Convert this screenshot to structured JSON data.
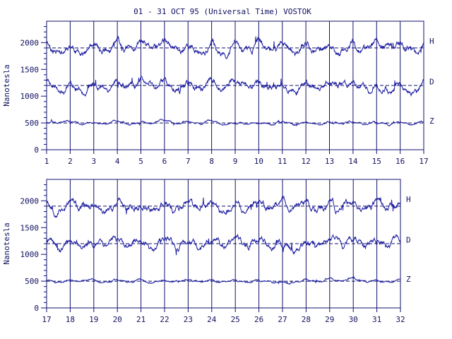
{
  "title": "01 - 31 OCT 95 (Universal Time) VOSTOK",
  "colors": {
    "ink": "#10106e",
    "trace": "#1a1aa0",
    "text": "#101060"
  },
  "chart_data": [
    {
      "type": "line",
      "title": "01 - 31 OCT 95 (Universal Time) VOSTOK",
      "ylabel": "Nanotesla",
      "xlim": [
        1,
        17
      ],
      "ylim": [
        0,
        2400
      ],
      "x_ticks": [
        "1",
        "2",
        "3",
        "4",
        "5",
        "6",
        "7",
        "8",
        "9",
        "10",
        "11",
        "12",
        "13",
        "14",
        "15",
        "16",
        "17"
      ],
      "y_ticks": [
        "0",
        "500",
        "1000",
        "1500",
        "2000"
      ],
      "grid": "vertical at each day",
      "series": [
        {
          "name": "H",
          "baseline": 1900,
          "amplitude": 120,
          "seed": 11
        },
        {
          "name": "D",
          "baseline": 1200,
          "amplitude": 110,
          "seed": 23
        },
        {
          "name": "Z",
          "baseline": 500,
          "amplitude": 35,
          "seed": 37
        }
      ]
    },
    {
      "type": "line",
      "ylabel": "Nanotesla",
      "xlim": [
        17,
        32
      ],
      "ylim": [
        0,
        2400
      ],
      "x_ticks": [
        "17",
        "18",
        "19",
        "20",
        "21",
        "22",
        "23",
        "24",
        "25",
        "26",
        "27",
        "28",
        "29",
        "30",
        "31",
        "32"
      ],
      "y_ticks": [
        "0",
        "500",
        "1000",
        "1500",
        "2000"
      ],
      "grid": "vertical at each day",
      "series": [
        {
          "name": "H",
          "baseline": 1900,
          "amplitude": 120,
          "seed": 53
        },
        {
          "name": "D",
          "baseline": 1200,
          "amplitude": 110,
          "seed": 71
        },
        {
          "name": "Z",
          "baseline": 500,
          "amplitude": 35,
          "seed": 89
        }
      ]
    }
  ]
}
